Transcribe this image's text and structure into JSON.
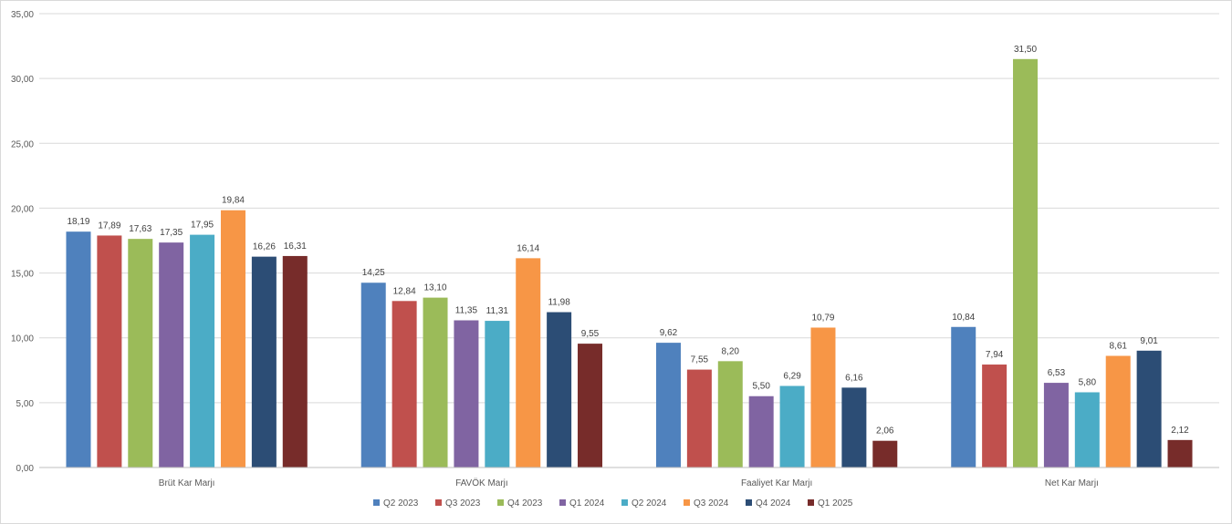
{
  "chart_data": {
    "type": "bar",
    "title": "",
    "xlabel": "",
    "ylabel": "",
    "ylim": [
      0,
      35
    ],
    "y_ticks": [
      "0,00",
      "5,00",
      "10,00",
      "15,00",
      "20,00",
      "25,00",
      "30,00",
      "35,00"
    ],
    "grid": true,
    "legend_position": "bottom",
    "categories": [
      "Brüt Kar Marjı",
      "FAVÖK Marjı",
      "Faaliyet Kar Marjı",
      "Net Kar Marjı"
    ],
    "series": [
      {
        "name": "Q2 2023",
        "color": "#4f81bd",
        "values": [
          18.19,
          14.25,
          9.62,
          10.84
        ],
        "labels": [
          "18,19",
          "14,25",
          "9,62",
          "10,84"
        ]
      },
      {
        "name": "Q3 2023",
        "color": "#c0504d",
        "values": [
          17.89,
          12.84,
          7.55,
          7.94
        ],
        "labels": [
          "17,89",
          "12,84",
          "7,55",
          "7,94"
        ]
      },
      {
        "name": "Q4 2023",
        "color": "#9bbb59",
        "values": [
          17.63,
          13.1,
          8.2,
          31.5
        ],
        "labels": [
          "17,63",
          "13,10",
          "8,20",
          "31,50"
        ]
      },
      {
        "name": "Q1 2024",
        "color": "#8064a2",
        "values": [
          17.35,
          11.35,
          5.5,
          6.53
        ],
        "labels": [
          "17,35",
          "11,35",
          "5,50",
          "6,53"
        ]
      },
      {
        "name": "Q2 2024",
        "color": "#4bacc6",
        "values": [
          17.95,
          11.31,
          6.29,
          5.8
        ],
        "labels": [
          "17,95",
          "11,31",
          "6,29",
          "5,80"
        ]
      },
      {
        "name": "Q3 2024",
        "color": "#f79646",
        "values": [
          19.84,
          16.14,
          10.79,
          8.61
        ],
        "labels": [
          "19,84",
          "16,14",
          "10,79",
          "8,61"
        ]
      },
      {
        "name": "Q4 2024",
        "color": "#2c4d75",
        "values": [
          16.26,
          11.98,
          6.16,
          9.01
        ],
        "labels": [
          "16,26",
          "11,98",
          "6,16",
          "9,01"
        ]
      },
      {
        "name": "Q1 2025",
        "color": "#772c2a",
        "values": [
          16.31,
          9.55,
          2.06,
          2.12
        ],
        "labels": [
          "16,31",
          "9,55",
          "2,06",
          "2,12"
        ]
      }
    ]
  }
}
